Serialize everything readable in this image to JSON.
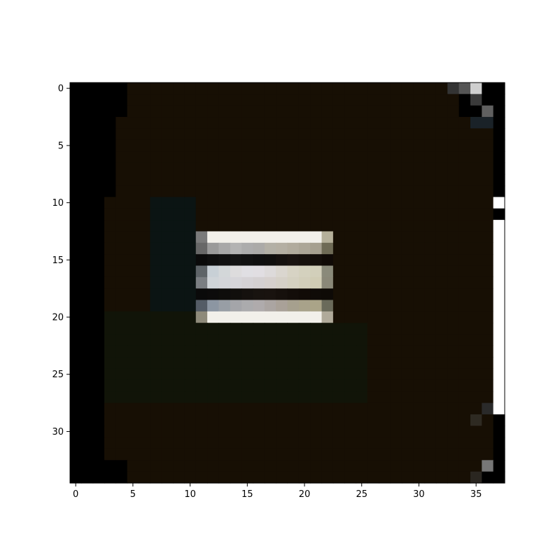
{
  "chart_data": {
    "type": "heatmap",
    "title": "",
    "xlabel": "",
    "ylabel": "",
    "xlim": [
      -0.5,
      37.5
    ],
    "ylim": [
      34.5,
      -0.5
    ],
    "x_ticks": [
      0,
      5,
      10,
      15,
      20,
      25,
      30,
      35
    ],
    "x_tick_labels": [
      "0",
      "5",
      "10",
      "15",
      "20",
      "25",
      "30",
      "35"
    ],
    "y_ticks": [
      0,
      5,
      10,
      15,
      20,
      25,
      30
    ],
    "y_tick_labels": [
      "0",
      "5",
      "10",
      "15",
      "20",
      "25",
      "30"
    ],
    "grid": false,
    "n_rows": 35,
    "n_cols": 38,
    "colors": {
      "background": "#000000",
      "dark_brown": "#170f04",
      "dark_teal": "#0b1413",
      "dark_olive": "#111408",
      "gray_edge": "#6e6e6e",
      "pale": "#f2f0ea",
      "white": "#ffffff"
    },
    "regions": [
      {
        "color": "dark_brown",
        "rows": [
          0,
          2
        ],
        "cols": [
          5,
          33
        ]
      },
      {
        "color": "dark_brown",
        "rows": [
          3,
          9
        ],
        "cols": [
          4,
          36
        ]
      },
      {
        "color": "dark_brown",
        "rows": [
          10,
          27
        ],
        "cols": [
          3,
          36
        ]
      },
      {
        "color": "dark_brown",
        "rows": [
          28,
          32
        ],
        "cols": [
          3,
          36
        ]
      },
      {
        "color": "dark_brown",
        "rows": [
          33,
          34
        ],
        "cols": [
          5,
          35
        ]
      },
      {
        "color": "dark_teal",
        "rows": [
          10,
          19
        ],
        "cols": [
          7,
          10
        ]
      },
      {
        "color": "dark_olive",
        "rows": [
          20,
          27
        ],
        "cols": [
          3,
          10
        ]
      },
      {
        "color": "dark_olive",
        "rows": [
          21,
          27
        ],
        "cols": [
          11,
          25
        ]
      },
      {
        "color": "pale",
        "rows": [
          13,
          13
        ],
        "cols": [
          11,
          21
        ]
      },
      {
        "color": "pale",
        "rows": [
          20,
          20
        ],
        "cols": [
          11,
          21
        ]
      }
    ],
    "cells": [
      {
        "row": 0,
        "col": 35,
        "color": "#cfcfcf"
      },
      {
        "row": 0,
        "col": 34,
        "color": "#555555"
      },
      {
        "row": 0,
        "col": 33,
        "color": "#333333"
      },
      {
        "row": 1,
        "col": 35,
        "color": "#3a3a3a"
      },
      {
        "row": 2,
        "col": 36,
        "color": "#606060"
      },
      {
        "row": 3,
        "col": 35,
        "color": "#1a2228"
      },
      {
        "row": 3,
        "col": 36,
        "color": "#1a2228"
      },
      {
        "row": 28,
        "col": 36,
        "color": "#2a2a2a"
      },
      {
        "row": 29,
        "col": 35,
        "color": "#2e2a22"
      },
      {
        "row": 33,
        "col": 36,
        "color": "#777777"
      },
      {
        "row": 34,
        "col": 35,
        "color": "#2a2620"
      },
      {
        "row": 13,
        "col": 11,
        "color": "#7a7a7a"
      },
      {
        "row": 13,
        "col": 22,
        "color": "#b5b09a"
      },
      {
        "row": 14,
        "col": 11,
        "color": "#676767"
      },
      {
        "row": 14,
        "col": 22,
        "color": "#6e6a55"
      },
      {
        "row": 16,
        "col": 11,
        "color": "#5e6468"
      },
      {
        "row": 16,
        "col": 22,
        "color": "#8a8a7a"
      },
      {
        "row": 17,
        "col": 11,
        "color": "#7a7e82"
      },
      {
        "row": 17,
        "col": 22,
        "color": "#8a8878"
      },
      {
        "row": 19,
        "col": 11,
        "color": "#545c66"
      },
      {
        "row": 19,
        "col": 22,
        "color": "#6a6a5a"
      },
      {
        "row": 20,
        "col": 11,
        "color": "#8e8a7a"
      },
      {
        "row": 20,
        "col": 22,
        "color": "#b0aa9a"
      }
    ],
    "row_gradients": [
      {
        "row": 14,
        "from_col": 12,
        "to_col": 21,
        "colors": [
          "#9a9a9a",
          "#b4b4b4",
          "#a8a8a8",
          "#b6b2a6",
          "#b0aa9c",
          "#a6a090"
        ]
      },
      {
        "row": 15,
        "from_col": 11,
        "to_col": 22,
        "colors": [
          "#0a0a0a",
          "#141414",
          "#0e0e0e",
          "#1a1410",
          "#100a06"
        ]
      },
      {
        "row": 16,
        "from_col": 12,
        "to_col": 21,
        "colors": [
          "#c8d0d6",
          "#dcdcdc",
          "#e2e0e6",
          "#dcd8d6",
          "#d6d2c2",
          "#d2cfba"
        ]
      },
      {
        "row": 17,
        "from_col": 12,
        "to_col": 21,
        "colors": [
          "#cfd4d8",
          "#d6d6da",
          "#d4d0d2",
          "#d6d0cc",
          "#d4d0be",
          "#d0ccb4"
        ]
      },
      {
        "row": 18,
        "from_col": 11,
        "to_col": 22,
        "colors": [
          "#0a0a0a",
          "#100e0c",
          "#1a1410",
          "#120c08",
          "#0e0a06"
        ]
      },
      {
        "row": 19,
        "from_col": 12,
        "to_col": 21,
        "colors": [
          "#8c96a2",
          "#a2a4a8",
          "#b0aeb0",
          "#aaa29e",
          "#a6a08c",
          "#aaa488"
        ]
      }
    ],
    "columns": [
      {
        "col": 37,
        "rows": [
          10,
          10
        ],
        "color": "white"
      },
      {
        "col": 37,
        "rows": [
          12,
          28
        ],
        "color": "white"
      }
    ]
  }
}
